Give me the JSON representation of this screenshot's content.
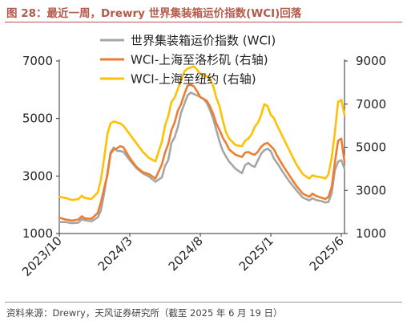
{
  "figure": {
    "title_prefix": "图 28：",
    "title": "最近一周，Drewry 世界集装箱运价指数(WCI)回落",
    "source": "资料来源：Drewry，天风证券研究所（截至 2025 年 6 月 19 日）"
  },
  "colors": {
    "wci": "#a6a6a6",
    "shanghai_rotterdam": "#ed7d31",
    "shanghai_newyork": "#ffc000",
    "title_color": "#b45a4a"
  },
  "chart_data": {
    "type": "line",
    "x_tick_labels": [
      "2023/10",
      "2024/3",
      "2024/8",
      "2025/1",
      "2025/6"
    ],
    "x_tick_dates": [
      "2023-10-05",
      "2024-03-07",
      "2024-08-08",
      "2025-01-09",
      "2025-06-12"
    ],
    "x_range": [
      "2023-10-05",
      "2025-06-19"
    ],
    "y_left": {
      "ticks": [
        1000,
        3000,
        5000,
        7000
      ],
      "range": [
        1000,
        7000
      ]
    },
    "y_right": {
      "ticks": [
        1000,
        3000,
        5000,
        7000,
        9000
      ],
      "range": [
        1000,
        9000
      ]
    },
    "legend_position": "top-center",
    "series": [
      {
        "name": "世界集装箱运价指数 (WCI)",
        "axis": "left",
        "color_key": "wci",
        "points": [
          [
            "2023-10-05",
            1400
          ],
          [
            "2023-10-19",
            1400
          ],
          [
            "2023-11-02",
            1360
          ],
          [
            "2023-11-16",
            1380
          ],
          [
            "2023-11-23",
            1500
          ],
          [
            "2023-11-30",
            1460
          ],
          [
            "2023-12-14",
            1420
          ],
          [
            "2023-12-28",
            1560
          ],
          [
            "2024-01-04",
            1800
          ],
          [
            "2024-01-11",
            2400
          ],
          [
            "2024-01-18",
            3100
          ],
          [
            "2024-01-25",
            3820
          ],
          [
            "2024-02-01",
            3990
          ],
          [
            "2024-02-08",
            3880
          ],
          [
            "2024-02-15",
            3870
          ],
          [
            "2024-02-22",
            3840
          ],
          [
            "2024-03-07",
            3550
          ],
          [
            "2024-03-21",
            3280
          ],
          [
            "2024-04-04",
            3100
          ],
          [
            "2024-04-18",
            2980
          ],
          [
            "2024-05-02",
            2800
          ],
          [
            "2024-05-16",
            2950
          ],
          [
            "2024-05-23",
            3350
          ],
          [
            "2024-05-30",
            3550
          ],
          [
            "2024-06-06",
            4150
          ],
          [
            "2024-06-13",
            4350
          ],
          [
            "2024-06-20",
            4700
          ],
          [
            "2024-06-27",
            5200
          ],
          [
            "2024-07-04",
            5500
          ],
          [
            "2024-07-11",
            5800
          ],
          [
            "2024-07-18",
            5900
          ],
          [
            "2024-07-25",
            5850
          ],
          [
            "2024-08-01",
            5800
          ],
          [
            "2024-08-08",
            5750
          ],
          [
            "2024-08-15",
            5680
          ],
          [
            "2024-08-22",
            5550
          ],
          [
            "2024-08-29",
            5300
          ],
          [
            "2024-09-05",
            5000
          ],
          [
            "2024-09-12",
            4600
          ],
          [
            "2024-09-19",
            4200
          ],
          [
            "2024-09-26",
            3880
          ],
          [
            "2024-10-03",
            3680
          ],
          [
            "2024-10-10",
            3500
          ],
          [
            "2024-10-24",
            3250
          ],
          [
            "2024-11-07",
            3100
          ],
          [
            "2024-11-14",
            3380
          ],
          [
            "2024-11-21",
            3450
          ],
          [
            "2024-11-28",
            3360
          ],
          [
            "2024-12-05",
            3320
          ],
          [
            "2024-12-12",
            3550
          ],
          [
            "2024-12-19",
            3780
          ],
          [
            "2024-12-26",
            3900
          ],
          [
            "2025-01-02",
            3950
          ],
          [
            "2025-01-09",
            3860
          ],
          [
            "2025-01-16",
            3600
          ],
          [
            "2025-01-23",
            3450
          ],
          [
            "2025-02-06",
            3100
          ],
          [
            "2025-02-20",
            2780
          ],
          [
            "2025-03-06",
            2500
          ],
          [
            "2025-03-20",
            2250
          ],
          [
            "2025-04-03",
            2150
          ],
          [
            "2025-04-10",
            2230
          ],
          [
            "2025-04-17",
            2170
          ],
          [
            "2025-05-01",
            2120
          ],
          [
            "2025-05-08",
            2080
          ],
          [
            "2025-05-15",
            2100
          ],
          [
            "2025-05-22",
            2400
          ],
          [
            "2025-05-29",
            3200
          ],
          [
            "2025-06-05",
            3500
          ],
          [
            "2025-06-12",
            3550
          ],
          [
            "2025-06-19",
            3250
          ]
        ]
      },
      {
        "name": "WCI-上海至洛杉矶 (右轴)",
        "axis": "right",
        "color_key": "shanghai_rotterdam",
        "points": [
          [
            "2023-10-05",
            1730
          ],
          [
            "2023-10-19",
            1650
          ],
          [
            "2023-11-02",
            1600
          ],
          [
            "2023-11-16",
            1650
          ],
          [
            "2023-11-23",
            1800
          ],
          [
            "2023-11-30",
            1700
          ],
          [
            "2023-12-14",
            1680
          ],
          [
            "2023-12-28",
            1950
          ],
          [
            "2024-01-04",
            2450
          ],
          [
            "2024-01-11",
            3100
          ],
          [
            "2024-01-18",
            3700
          ],
          [
            "2024-01-25",
            4700
          ],
          [
            "2024-02-01",
            4900
          ],
          [
            "2024-02-08",
            4950
          ],
          [
            "2024-02-15",
            5050
          ],
          [
            "2024-02-22",
            5000
          ],
          [
            "2024-03-07",
            4500
          ],
          [
            "2024-03-21",
            4100
          ],
          [
            "2024-04-04",
            3850
          ],
          [
            "2024-04-18",
            3750
          ],
          [
            "2024-05-02",
            3550
          ],
          [
            "2024-05-16",
            4200
          ],
          [
            "2024-05-23",
            4750
          ],
          [
            "2024-05-30",
            5150
          ],
          [
            "2024-06-06",
            5800
          ],
          [
            "2024-06-13",
            6150
          ],
          [
            "2024-06-20",
            6700
          ],
          [
            "2024-06-27",
            7000
          ],
          [
            "2024-07-04",
            7450
          ],
          [
            "2024-07-11",
            7850
          ],
          [
            "2024-07-18",
            7900
          ],
          [
            "2024-07-25",
            7820
          ],
          [
            "2024-08-01",
            7600
          ],
          [
            "2024-08-08",
            7320
          ],
          [
            "2024-08-15",
            7250
          ],
          [
            "2024-08-22",
            7150
          ],
          [
            "2024-08-29",
            6900
          ],
          [
            "2024-09-05",
            6550
          ],
          [
            "2024-09-12",
            6100
          ],
          [
            "2024-09-19",
            5800
          ],
          [
            "2024-09-26",
            5450
          ],
          [
            "2024-10-03",
            5200
          ],
          [
            "2024-10-10",
            4900
          ],
          [
            "2024-10-24",
            4650
          ],
          [
            "2024-11-07",
            4550
          ],
          [
            "2024-11-14",
            4750
          ],
          [
            "2024-11-21",
            4780
          ],
          [
            "2024-11-28",
            4700
          ],
          [
            "2024-12-05",
            4650
          ],
          [
            "2024-12-12",
            4800
          ],
          [
            "2024-12-19",
            5020
          ],
          [
            "2024-12-26",
            5150
          ],
          [
            "2025-01-02",
            5200
          ],
          [
            "2025-01-09",
            5050
          ],
          [
            "2025-01-16",
            4900
          ],
          [
            "2025-01-23",
            4600
          ],
          [
            "2025-02-06",
            4100
          ],
          [
            "2025-02-20",
            3650
          ],
          [
            "2025-03-06",
            3200
          ],
          [
            "2025-03-20",
            2850
          ],
          [
            "2025-04-03",
            2700
          ],
          [
            "2025-04-10",
            2850
          ],
          [
            "2025-04-17",
            2750
          ],
          [
            "2025-05-01",
            2650
          ],
          [
            "2025-05-08",
            2600
          ],
          [
            "2025-05-15",
            2700
          ],
          [
            "2025-05-22",
            3150
          ],
          [
            "2025-05-29",
            4300
          ],
          [
            "2025-06-05",
            5300
          ],
          [
            "2025-06-12",
            5400
          ],
          [
            "2025-06-19",
            4300
          ]
        ]
      },
      {
        "name": "WCI-上海至纽约 (右轴)",
        "axis": "right",
        "color_key": "shanghai_newyork",
        "points": [
          [
            "2023-10-05",
            2700
          ],
          [
            "2023-10-19",
            2650
          ],
          [
            "2023-11-02",
            2550
          ],
          [
            "2023-11-16",
            2600
          ],
          [
            "2023-11-23",
            2750
          ],
          [
            "2023-11-30",
            2650
          ],
          [
            "2023-12-14",
            2600
          ],
          [
            "2023-12-28",
            2900
          ],
          [
            "2024-01-04",
            3500
          ],
          [
            "2024-01-11",
            4500
          ],
          [
            "2024-01-18",
            5600
          ],
          [
            "2024-01-25",
            6100
          ],
          [
            "2024-02-01",
            6200
          ],
          [
            "2024-02-08",
            6150
          ],
          [
            "2024-02-15",
            6100
          ],
          [
            "2024-02-22",
            6000
          ],
          [
            "2024-03-07",
            5600
          ],
          [
            "2024-03-21",
            5200
          ],
          [
            "2024-04-04",
            4800
          ],
          [
            "2024-04-18",
            4500
          ],
          [
            "2024-05-02",
            4350
          ],
          [
            "2024-05-16",
            5250
          ],
          [
            "2024-05-23",
            6000
          ],
          [
            "2024-05-30",
            6450
          ],
          [
            "2024-06-06",
            7100
          ],
          [
            "2024-06-13",
            7300
          ],
          [
            "2024-06-20",
            7700
          ],
          [
            "2024-06-27",
            8100
          ],
          [
            "2024-07-04",
            8500
          ],
          [
            "2024-07-11",
            8650
          ],
          [
            "2024-07-18",
            8700
          ],
          [
            "2024-07-25",
            8750
          ],
          [
            "2024-08-01",
            8600
          ],
          [
            "2024-08-08",
            8400
          ],
          [
            "2024-08-15",
            8300
          ],
          [
            "2024-08-22",
            8300
          ],
          [
            "2024-08-29",
            8150
          ],
          [
            "2024-09-05",
            7850
          ],
          [
            "2024-09-12",
            7300
          ],
          [
            "2024-09-19",
            6900
          ],
          [
            "2024-09-26",
            6250
          ],
          [
            "2024-10-03",
            5700
          ],
          [
            "2024-10-10",
            5400
          ],
          [
            "2024-10-24",
            5100
          ],
          [
            "2024-11-07",
            5050
          ],
          [
            "2024-11-14",
            5300
          ],
          [
            "2024-11-21",
            5400
          ],
          [
            "2024-11-28",
            5600
          ],
          [
            "2024-12-05",
            5950
          ],
          [
            "2024-12-12",
            6150
          ],
          [
            "2024-12-19",
            6500
          ],
          [
            "2024-12-26",
            7000
          ],
          [
            "2025-01-02",
            6900
          ],
          [
            "2025-01-09",
            6500
          ],
          [
            "2025-01-16",
            6350
          ],
          [
            "2025-01-23",
            6000
          ],
          [
            "2025-02-06",
            5400
          ],
          [
            "2025-02-20",
            4800
          ],
          [
            "2025-03-06",
            4200
          ],
          [
            "2025-03-20",
            3750
          ],
          [
            "2025-04-03",
            3550
          ],
          [
            "2025-04-10",
            3700
          ],
          [
            "2025-04-17",
            3650
          ],
          [
            "2025-05-01",
            3600
          ],
          [
            "2025-05-08",
            3550
          ],
          [
            "2025-05-15",
            3750
          ],
          [
            "2025-05-22",
            4500
          ],
          [
            "2025-05-29",
            5700
          ],
          [
            "2025-06-05",
            7100
          ],
          [
            "2025-06-12",
            7200
          ],
          [
            "2025-06-19",
            6500
          ]
        ]
      }
    ]
  }
}
